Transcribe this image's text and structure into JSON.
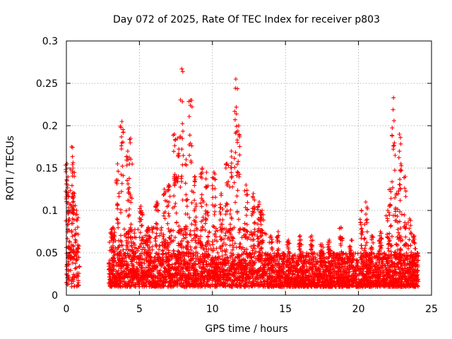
{
  "chart_data": {
    "type": "scatter",
    "title": "Day 072 of 2025, Rate Of TEC Index for receiver p803",
    "xlabel": "GPS time / hours",
    "ylabel": "ROTI / TECUs",
    "xlim": [
      0,
      25
    ],
    "ylim": [
      0,
      0.3
    ],
    "xticks": [
      "0",
      "5",
      "10",
      "15",
      "20",
      "25"
    ],
    "yticks": [
      "0",
      "0.05",
      "0.1",
      "0.15",
      "0.2",
      "0.25",
      "0.3"
    ],
    "grid": true,
    "marker": "plus",
    "series": [
      {
        "name": "ROTI",
        "color": "#ff0000",
        "clusters": [
          {
            "x": [
              0.0,
              0.9
            ],
            "base": [
              0.01,
              0.06
            ],
            "peaks": [
              [
                0.05,
                0.155
              ],
              [
                0.1,
                0.13
              ],
              [
                0.2,
                0.09
              ],
              [
                0.35,
                0.175
              ],
              [
                0.45,
                0.15
              ],
              [
                0.55,
                0.12
              ],
              [
                0.7,
                0.1
              ]
            ]
          },
          {
            "x": [
              2.9,
              24.1
            ],
            "base": [
              0.01,
              0.05
            ]
          },
          {
            "x": [
              2.9,
              13.7
            ],
            "base": [
              0.02,
              0.08
            ],
            "peaks": [
              [
                3.2,
                0.08
              ],
              [
                3.5,
                0.155
              ],
              [
                3.8,
                0.205
              ],
              [
                4.2,
                0.17
              ],
              [
                4.4,
                0.185
              ],
              [
                5.1,
                0.105
              ],
              [
                5.6,
                0.08
              ],
              [
                6.2,
                0.11
              ],
              [
                6.7,
                0.125
              ],
              [
                7.0,
                0.13
              ],
              [
                7.4,
                0.19
              ],
              [
                7.6,
                0.185
              ],
              [
                7.9,
                0.267
              ],
              [
                8.2,
                0.16
              ],
              [
                8.5,
                0.23
              ],
              [
                8.8,
                0.14
              ],
              [
                9.3,
                0.15
              ],
              [
                9.6,
                0.145
              ],
              [
                10.1,
                0.145
              ],
              [
                10.6,
                0.12
              ],
              [
                11.0,
                0.155
              ],
              [
                11.3,
                0.17
              ],
              [
                11.6,
                0.255
              ],
              [
                11.8,
                0.2
              ],
              [
                12.3,
                0.13
              ],
              [
                12.8,
                0.12
              ],
              [
                13.2,
                0.11
              ],
              [
                13.4,
                0.1
              ]
            ]
          },
          {
            "x": [
              13.7,
              24.1
            ],
            "base": [
              0.01,
              0.05
            ],
            "peaks": [
              [
                14.0,
                0.07
              ],
              [
                14.5,
                0.075
              ],
              [
                15.2,
                0.065
              ],
              [
                16.0,
                0.07
              ],
              [
                16.8,
                0.07
              ],
              [
                17.5,
                0.06
              ],
              [
                18.0,
                0.065
              ],
              [
                18.8,
                0.08
              ],
              [
                19.5,
                0.065
              ],
              [
                20.2,
                0.1
              ],
              [
                20.5,
                0.11
              ],
              [
                20.9,
                0.07
              ],
              [
                21.5,
                0.075
              ],
              [
                22.0,
                0.1
              ],
              [
                22.2,
                0.125
              ],
              [
                22.4,
                0.233
              ],
              [
                22.6,
                0.12
              ],
              [
                22.8,
                0.19
              ],
              [
                22.9,
                0.155
              ],
              [
                23.2,
                0.14
              ],
              [
                23.5,
                0.09
              ],
              [
                23.8,
                0.07
              ]
            ]
          }
        ]
      }
    ]
  }
}
